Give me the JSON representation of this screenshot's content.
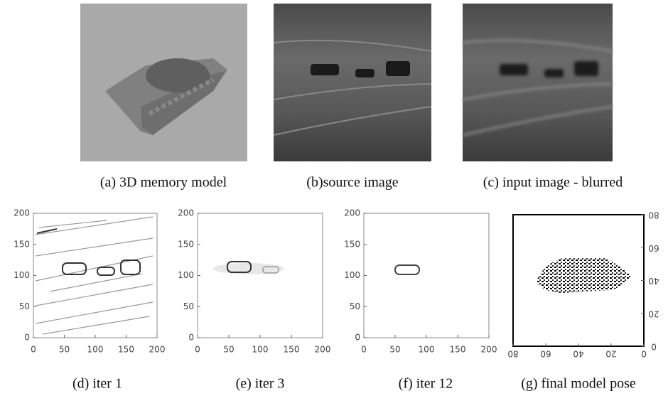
{
  "panels": [
    {
      "caption": "(a) 3D memory model"
    },
    {
      "caption": "(b)source image"
    },
    {
      "caption": "(c) input image - blurred"
    },
    {
      "caption": "(d) iter 1",
      "xlim": [
        0,
        200
      ],
      "ylim": [
        0,
        200
      ],
      "xticks": [
        0,
        50,
        100,
        150,
        200
      ],
      "yticks": [
        0,
        50,
        100,
        150,
        200
      ]
    },
    {
      "caption": "(e) iter 3",
      "xlim": [
        0,
        200
      ],
      "ylim": [
        0,
        200
      ],
      "xticks": [
        0,
        50,
        100,
        150,
        200
      ],
      "yticks": [
        0,
        50,
        100,
        150,
        200
      ]
    },
    {
      "caption": "(f) iter 12",
      "xlim": [
        0,
        200
      ],
      "ylim": [
        0,
        200
      ],
      "xticks": [
        0,
        50,
        100,
        150,
        200
      ],
      "yticks": [
        0,
        50,
        100,
        150,
        200
      ]
    },
    {
      "caption": "(g) final model pose",
      "xlim": [
        80,
        0
      ],
      "ylim": [
        0,
        80
      ],
      "xticks": [
        80,
        60,
        40,
        20,
        0
      ],
      "yticks": [
        0,
        20,
        40,
        60,
        80
      ],
      "mirrored": true
    }
  ]
}
